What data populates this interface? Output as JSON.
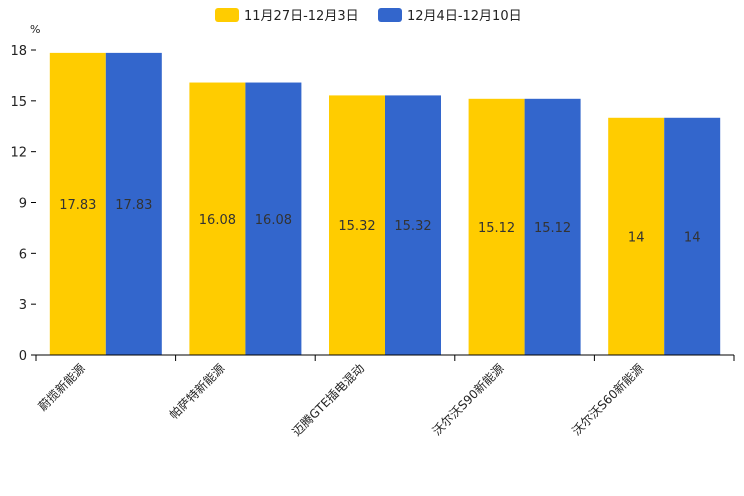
{
  "chart_data": {
    "type": "bar",
    "y_unit": "%",
    "categories": [
      "蔚揽新能源",
      "帕萨特新能源",
      "迈腾GTE插电混动",
      "沃尔沃S90新能源",
      "沃尔沃S60新能源"
    ],
    "series": [
      {
        "name": "11月27日-12月3日",
        "color": "#FFCC00",
        "values": [
          17.83,
          16.08,
          15.32,
          15.12,
          14
        ]
      },
      {
        "name": "12月4日-12月10日",
        "color": "#3366CC",
        "values": [
          17.83,
          16.08,
          15.32,
          15.12,
          14
        ]
      }
    ],
    "ylim": [
      0,
      18
    ],
    "yticks": [
      0,
      3,
      6,
      9,
      12,
      15,
      18
    ],
    "grid": false,
    "legend": "top-center",
    "value_labels": [
      "17.83",
      "16.08",
      "15.32",
      "15.12",
      "14"
    ]
  }
}
